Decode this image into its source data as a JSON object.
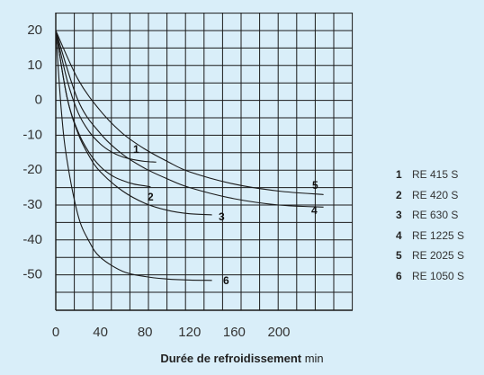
{
  "chart_data": {
    "type": "line",
    "xlabel_bold": "Durée de refroidissement",
    "xlabel_unit": "min",
    "ylabel": "",
    "xlim": [
      0,
      240
    ],
    "ylim": [
      -60,
      25
    ],
    "x_ticks": [
      "0",
      "40",
      "80",
      "120",
      "160",
      "200"
    ],
    "y_ticks": [
      "20",
      "10",
      "0",
      "-10",
      "-20",
      "-30",
      "-40",
      "-50"
    ],
    "grid": true,
    "legend_position": "right",
    "series": [
      {
        "id": "1",
        "name": "RE 415 S",
        "x": [
          0,
          10,
          20,
          30,
          40,
          50,
          60,
          70,
          80,
          90
        ],
        "y": [
          20,
          6,
          -3.5,
          -9,
          -12.5,
          -14.8,
          -16.2,
          -17,
          -17.5,
          -17.7
        ]
      },
      {
        "id": "2",
        "name": "RE 420 S",
        "x": [
          0,
          10,
          20,
          30,
          40,
          50,
          60,
          70,
          80,
          85
        ],
        "y": [
          20,
          1,
          -9,
          -15,
          -19,
          -21.5,
          -23,
          -24,
          -24.5,
          -24.8
        ]
      },
      {
        "id": "3",
        "name": "RE 630 S",
        "x": [
          0,
          10,
          20,
          30,
          40,
          60,
          80,
          100,
          120,
          140
        ],
        "y": [
          20,
          1,
          -9.5,
          -16,
          -20.5,
          -26,
          -29.5,
          -31.5,
          -32.5,
          -32.8
        ]
      },
      {
        "id": "4",
        "name": "RE 1225 S",
        "x": [
          0,
          20,
          40,
          60,
          80,
          100,
          120,
          160,
          200,
          240
        ],
        "y": [
          20,
          0,
          -9.5,
          -15.5,
          -19.5,
          -22.5,
          -25,
          -28.2,
          -30,
          -30.6
        ]
      },
      {
        "id": "5",
        "name": "RE 2025 S",
        "x": [
          0,
          20,
          40,
          60,
          80,
          100,
          120,
          160,
          200,
          240
        ],
        "y": [
          20,
          6,
          -3,
          -9.5,
          -14,
          -17.5,
          -20.5,
          -24,
          -26,
          -27
        ]
      },
      {
        "id": "6",
        "name": "RE 1050 S",
        "x": [
          0,
          5,
          10,
          20,
          30,
          40,
          60,
          80,
          100,
          120,
          140
        ],
        "y": [
          20,
          -3,
          -17,
          -33,
          -40.5,
          -45,
          -49,
          -50.5,
          -51.2,
          -51.5,
          -51.6
        ]
      }
    ]
  }
}
